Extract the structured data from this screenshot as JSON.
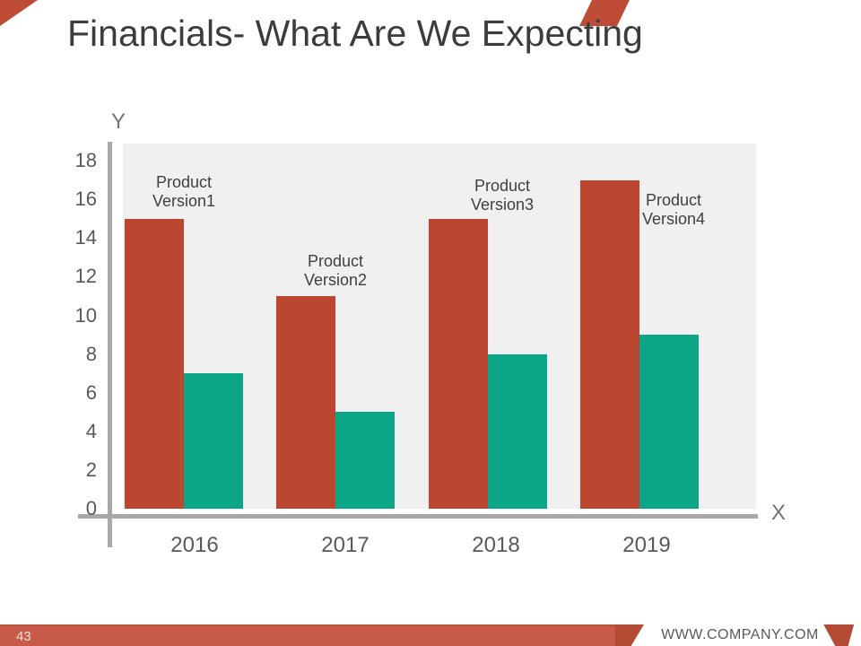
{
  "slide": {
    "title": "Financials- What Are We Expecting",
    "footer": {
      "page_number": "43",
      "website": "WWW.COMPANY.COM"
    }
  },
  "colors": {
    "series_red": "#bc4731",
    "series_teal": "#0ba687",
    "footer_red": "#c85b48",
    "footer_dark_red": "#b34b35",
    "accent_red": "#be4b35",
    "axis_line_gray": "#a8a8a8",
    "plot_background": "#f0f0f1",
    "title_text": "#3c3c3c",
    "label_gray": "#595959"
  },
  "chart_data": {
    "type": "bar",
    "title": "Financials- What Are We Expecting",
    "xlabel": "X",
    "ylabel": "Y",
    "categories": [
      "2016",
      "2017",
      "2018",
      "2019"
    ],
    "series": [
      {
        "name": "product-version-red",
        "color": "#bc4731",
        "values": [
          15,
          11,
          15,
          17
        ]
      },
      {
        "name": "product-version-teal",
        "color": "#0ba687",
        "values": [
          7,
          5,
          8,
          9
        ]
      }
    ],
    "bar_annotations": [
      {
        "line1": "Product",
        "line2": "Version1"
      },
      {
        "line1": "Product",
        "line2": "Version2"
      },
      {
        "line1": "Product",
        "line2": "Version3"
      },
      {
        "line1": "Product",
        "line2": "Version4"
      }
    ],
    "ylim": [
      0,
      18
    ],
    "ytick_step": 2,
    "grid": false,
    "legend": "none"
  }
}
